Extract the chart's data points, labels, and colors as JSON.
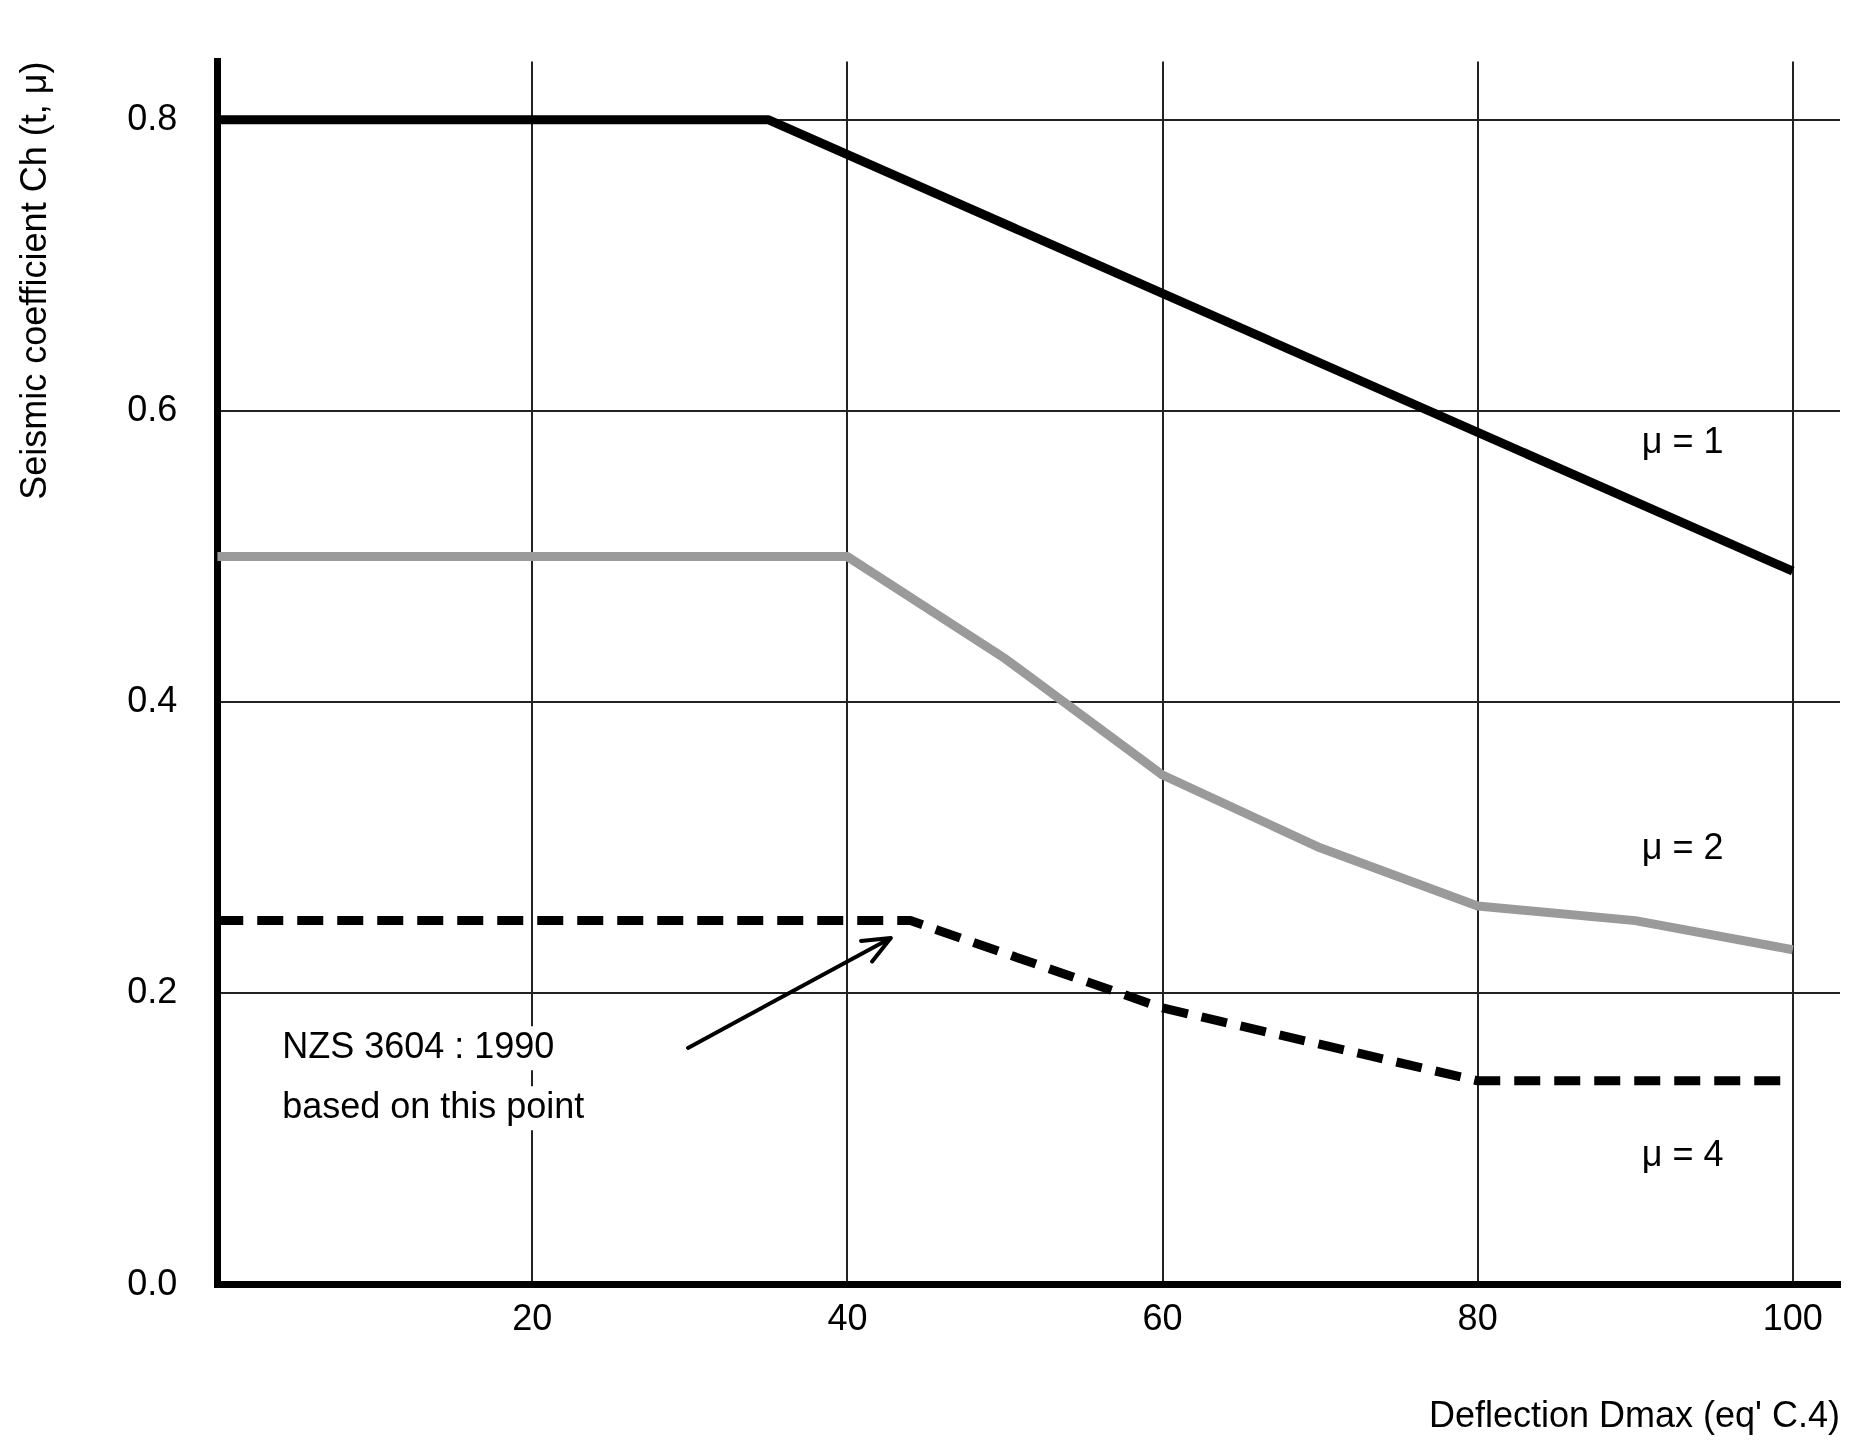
{
  "chart_data": {
    "type": "line",
    "xlabel": "Deflection Dmax (eq' C.4)",
    "ylabel": "Seismic coefficient Ch (t, μ)",
    "xlim": [
      0,
      103
    ],
    "xticks": [
      20,
      40,
      60,
      80,
      100
    ],
    "ylim": [
      0,
      0.84
    ],
    "yticks": [
      {
        "value": 0,
        "label": "0.0"
      },
      {
        "value": 0.2,
        "label": "0.2"
      },
      {
        "value": 0.4,
        "label": "0.4"
      },
      {
        "value": 0.6,
        "label": "0.6"
      },
      {
        "value": 0.8,
        "label": "0.8"
      }
    ],
    "grid": true,
    "legend": false,
    "marker": "none",
    "series": [
      {
        "name": "μ = 1",
        "color": "#000000",
        "line_style": "solid",
        "x": [
          0,
          35,
          100
        ],
        "values": [
          0.8,
          0.8,
          0.49
        ]
      },
      {
        "name": "μ = 2",
        "color": "#9a9a9a",
        "line_style": "solid",
        "x": [
          0,
          40,
          50,
          60,
          70,
          80,
          90,
          100
        ],
        "values": [
          0.5,
          0.5,
          0.43,
          0.35,
          0.3,
          0.26,
          0.25,
          0.23
        ]
      },
      {
        "name": "μ = 4",
        "color": "#000000",
        "line_style": "dashed",
        "x": [
          0,
          44,
          60,
          80,
          100
        ],
        "values": [
          0.25,
          0.25,
          0.19,
          0.14,
          0.14
        ]
      }
    ],
    "annotations": [
      "NZS 3604 : 1990\nbased on this point"
    ]
  }
}
